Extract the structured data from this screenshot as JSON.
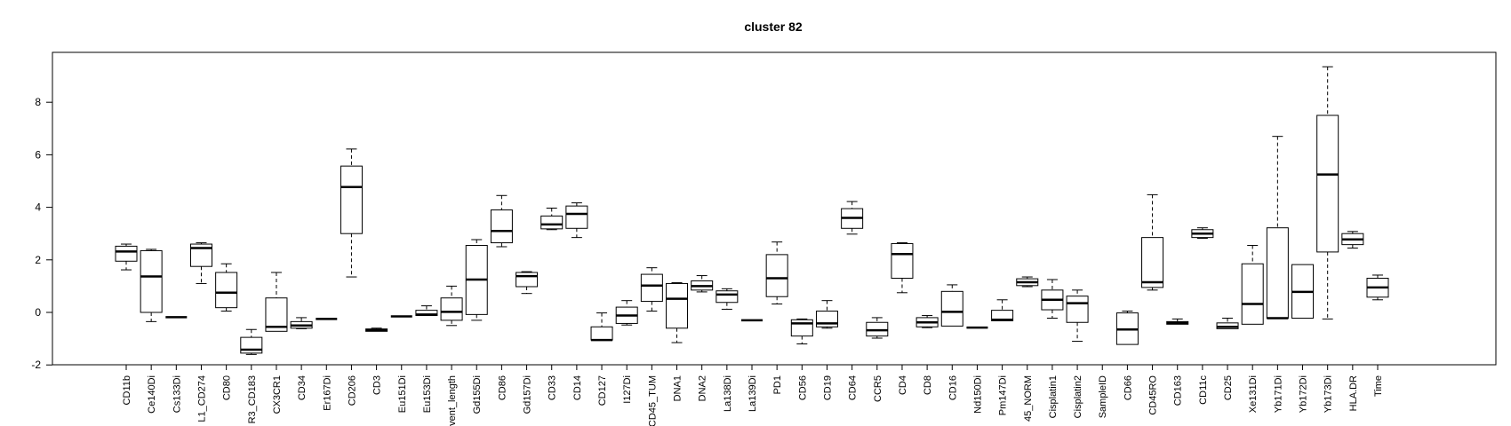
{
  "chart_data": {
    "type": "boxplot",
    "title": "cluster 82",
    "xlabel": "",
    "ylabel": "",
    "ylim": [
      -2,
      10
    ],
    "y_ticks": [
      -2,
      0,
      2,
      4,
      6,
      8
    ],
    "grid": false,
    "legend": "none",
    "box_color": "#000000",
    "categories": [
      "CD11b",
      "Ce140Di",
      "Cs133Di",
      "L1_CD274",
      "CD80",
      "R3_CD183",
      "CX3CR1",
      "CD34",
      "Er167Di",
      "CD206",
      "CD3",
      "Eu151Di",
      "Eu153Di",
      "vent_length",
      "Gd155Di",
      "CD86",
      "Gd157Di",
      "CD33",
      "CD14",
      "CD127",
      "I127Di",
      "CD45_TUM",
      "DNA1",
      "DNA2",
      "La138Di",
      "La139Di",
      "PD1",
      "CD56",
      "CD19",
      "CD64",
      "CCR5",
      "CD4",
      "CD8",
      "CD16",
      "Nd150Di",
      "Pm147Di",
      "45_NORM",
      "Cisplatin1",
      "Cisplatin2",
      "SampleID",
      "CD66",
      "CD45RO",
      "CD163",
      "CD11c",
      "CD25",
      "Xe131Di",
      "Yb171Di",
      "Yb172Di",
      "Yb173Di",
      "HLA.DR",
      "Time"
    ],
    "boxes": [
      {
        "min": 1.62,
        "q1": 1.95,
        "median": 2.32,
        "q3": 2.52,
        "max": 2.6
      },
      {
        "min": -0.35,
        "q1": 0.0,
        "median": 1.37,
        "q3": 2.35,
        "max": 2.4
      },
      {
        "min": -0.18,
        "q1": -0.18,
        "median": -0.18,
        "q3": -0.18,
        "max": -0.18
      },
      {
        "min": 1.1,
        "q1": 1.75,
        "median": 2.45,
        "q3": 2.6,
        "max": 2.65
      },
      {
        "min": 0.05,
        "q1": 0.18,
        "median": 0.75,
        "q3": 1.52,
        "max": 1.85
      },
      {
        "min": -1.6,
        "q1": -1.55,
        "median": -1.42,
        "q3": -0.95,
        "max": -0.65
      },
      {
        "min": -0.72,
        "q1": -0.72,
        "median": -0.55,
        "q3": 0.55,
        "max": 1.52
      },
      {
        "min": -0.62,
        "q1": -0.6,
        "median": -0.5,
        "q3": -0.35,
        "max": -0.2
      },
      {
        "min": -0.25,
        "q1": -0.25,
        "median": -0.25,
        "q3": -0.25,
        "max": -0.25
      },
      {
        "min": 1.35,
        "q1": 3.0,
        "median": 4.77,
        "q3": 5.57,
        "max": 6.22
      },
      {
        "min": -0.72,
        "q1": -0.72,
        "median": -0.68,
        "q3": -0.63,
        "max": -0.6
      },
      {
        "min": -0.15,
        "q1": -0.15,
        "median": -0.15,
        "q3": -0.15,
        "max": -0.15
      },
      {
        "min": -0.12,
        "q1": -0.12,
        "median": -0.08,
        "q3": 0.08,
        "max": 0.25
      },
      {
        "min": -0.5,
        "q1": -0.3,
        "median": 0.02,
        "q3": 0.55,
        "max": 1.0
      },
      {
        "min": -0.3,
        "q1": -0.08,
        "median": 1.25,
        "q3": 2.55,
        "max": 2.77
      },
      {
        "min": 2.5,
        "q1": 2.65,
        "median": 3.1,
        "q3": 3.9,
        "max": 4.45
      },
      {
        "min": 0.72,
        "q1": 0.98,
        "median": 1.38,
        "q3": 1.52,
        "max": 1.55
      },
      {
        "min": 3.15,
        "q1": 3.18,
        "median": 3.35,
        "q3": 3.67,
        "max": 3.97
      },
      {
        "min": 2.85,
        "q1": 3.2,
        "median": 3.75,
        "q3": 4.05,
        "max": 4.17
      },
      {
        "min": -1.05,
        "q1": -1.05,
        "median": -1.05,
        "q3": -0.55,
        "max": -0.02
      },
      {
        "min": -0.48,
        "q1": -0.42,
        "median": -0.12,
        "q3": 0.2,
        "max": 0.45
      },
      {
        "min": 0.05,
        "q1": 0.42,
        "median": 1.02,
        "q3": 1.45,
        "max": 1.7
      },
      {
        "min": -1.15,
        "q1": -0.6,
        "median": 0.52,
        "q3": 1.1,
        "max": 1.13
      },
      {
        "min": 0.78,
        "q1": 0.85,
        "median": 1.0,
        "q3": 1.2,
        "max": 1.4
      },
      {
        "min": 0.12,
        "q1": 0.38,
        "median": 0.68,
        "q3": 0.82,
        "max": 0.9
      },
      {
        "min": -0.3,
        "q1": -0.3,
        "median": -0.3,
        "q3": -0.3,
        "max": -0.3
      },
      {
        "min": 0.32,
        "q1": 0.6,
        "median": 1.3,
        "q3": 2.2,
        "max": 2.68
      },
      {
        "min": -1.2,
        "q1": -0.9,
        "median": -0.42,
        "q3": -0.28,
        "max": -0.25
      },
      {
        "min": -0.6,
        "q1": -0.55,
        "median": -0.42,
        "q3": 0.05,
        "max": 0.45
      },
      {
        "min": 2.98,
        "q1": 3.2,
        "median": 3.6,
        "q3": 3.95,
        "max": 4.22
      },
      {
        "min": -0.98,
        "q1": -0.9,
        "median": -0.68,
        "q3": -0.38,
        "max": -0.2
      },
      {
        "min": 0.75,
        "q1": 1.3,
        "median": 2.22,
        "q3": 2.62,
        "max": 2.65
      },
      {
        "min": -0.58,
        "q1": -0.55,
        "median": -0.38,
        "q3": -0.2,
        "max": -0.12
      },
      {
        "min": -0.52,
        "q1": -0.52,
        "median": 0.02,
        "q3": 0.8,
        "max": 1.05
      },
      {
        "min": -0.58,
        "q1": -0.58,
        "median": -0.58,
        "q3": -0.58,
        "max": -0.58
      },
      {
        "min": -0.32,
        "q1": -0.32,
        "median": -0.28,
        "q3": 0.08,
        "max": 0.48
      },
      {
        "min": 0.98,
        "q1": 1.02,
        "median": 1.15,
        "q3": 1.28,
        "max": 1.35
      },
      {
        "min": -0.22,
        "q1": 0.1,
        "median": 0.48,
        "q3": 0.85,
        "max": 1.25
      },
      {
        "min": -1.1,
        "q1": -0.38,
        "median": 0.35,
        "q3": 0.62,
        "max": 0.85
      },
      {
        "min": null,
        "q1": null,
        "median": null,
        "q3": null,
        "max": null
      },
      {
        "min": -1.22,
        "q1": -1.22,
        "median": -0.65,
        "q3": -0.02,
        "max": 0.05
      },
      {
        "min": 0.85,
        "q1": 0.95,
        "median": 1.15,
        "q3": 2.85,
        "max": 4.48
      },
      {
        "min": -0.45,
        "q1": -0.45,
        "median": -0.4,
        "q3": -0.35,
        "max": -0.25
      },
      {
        "min": 2.82,
        "q1": 2.85,
        "median": 3.0,
        "q3": 3.15,
        "max": 3.22
      },
      {
        "min": -0.62,
        "q1": -0.62,
        "median": -0.55,
        "q3": -0.4,
        "max": -0.22
      },
      {
        "min": -0.45,
        "q1": -0.45,
        "median": 0.32,
        "q3": 1.85,
        "max": 2.55
      },
      {
        "min": -0.22,
        "q1": -0.22,
        "median": -0.22,
        "q3": 3.22,
        "max": 6.7
      },
      {
        "min": -0.22,
        "q1": -0.22,
        "median": 0.78,
        "q3": 1.82,
        "max": 1.82
      },
      {
        "min": -0.25,
        "q1": 2.3,
        "median": 5.25,
        "q3": 7.5,
        "max": 9.35
      },
      {
        "min": 2.45,
        "q1": 2.58,
        "median": 2.78,
        "q3": 3.0,
        "max": 3.08
      },
      {
        "min": 0.48,
        "q1": 0.58,
        "median": 0.95,
        "q3": 1.3,
        "max": 1.42
      }
    ]
  }
}
